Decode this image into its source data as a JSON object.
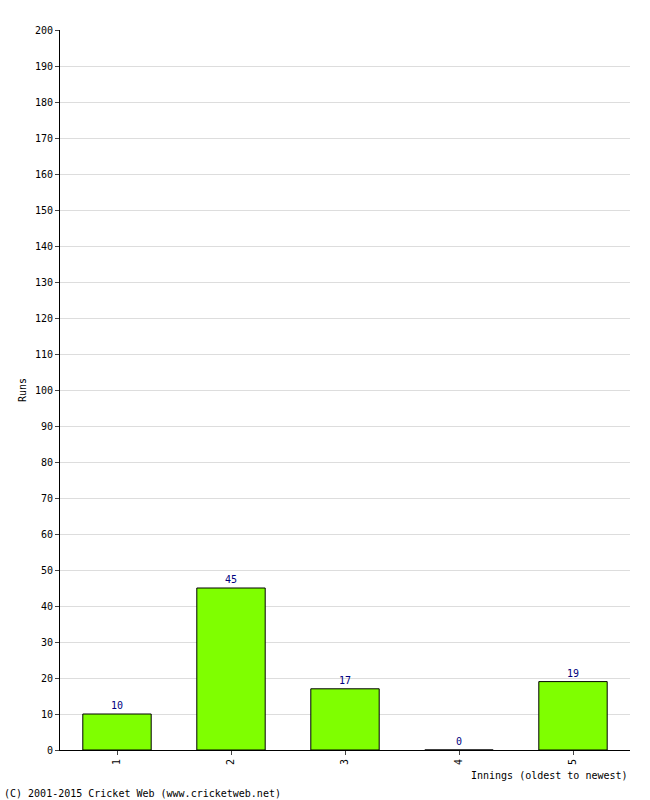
{
  "chart_data": {
    "type": "bar",
    "x_label": "Innings (oldest to newest)",
    "y_label": "Runs",
    "categories": [
      "1",
      "2",
      "3",
      "4",
      "5"
    ],
    "values": [
      10,
      45,
      17,
      0,
      19
    ],
    "color": "#7fff00",
    "ylim": [
      0,
      200
    ],
    "yticks": [
      0,
      10,
      20,
      30,
      40,
      50,
      60,
      70,
      80,
      90,
      100,
      110,
      120,
      130,
      140,
      150,
      160,
      170,
      180,
      190,
      200
    ],
    "grid": true,
    "data_labels": true,
    "annotations": [
      "(C) 2001-2015 Cricket Web (www.cricketweb.net)"
    ]
  }
}
